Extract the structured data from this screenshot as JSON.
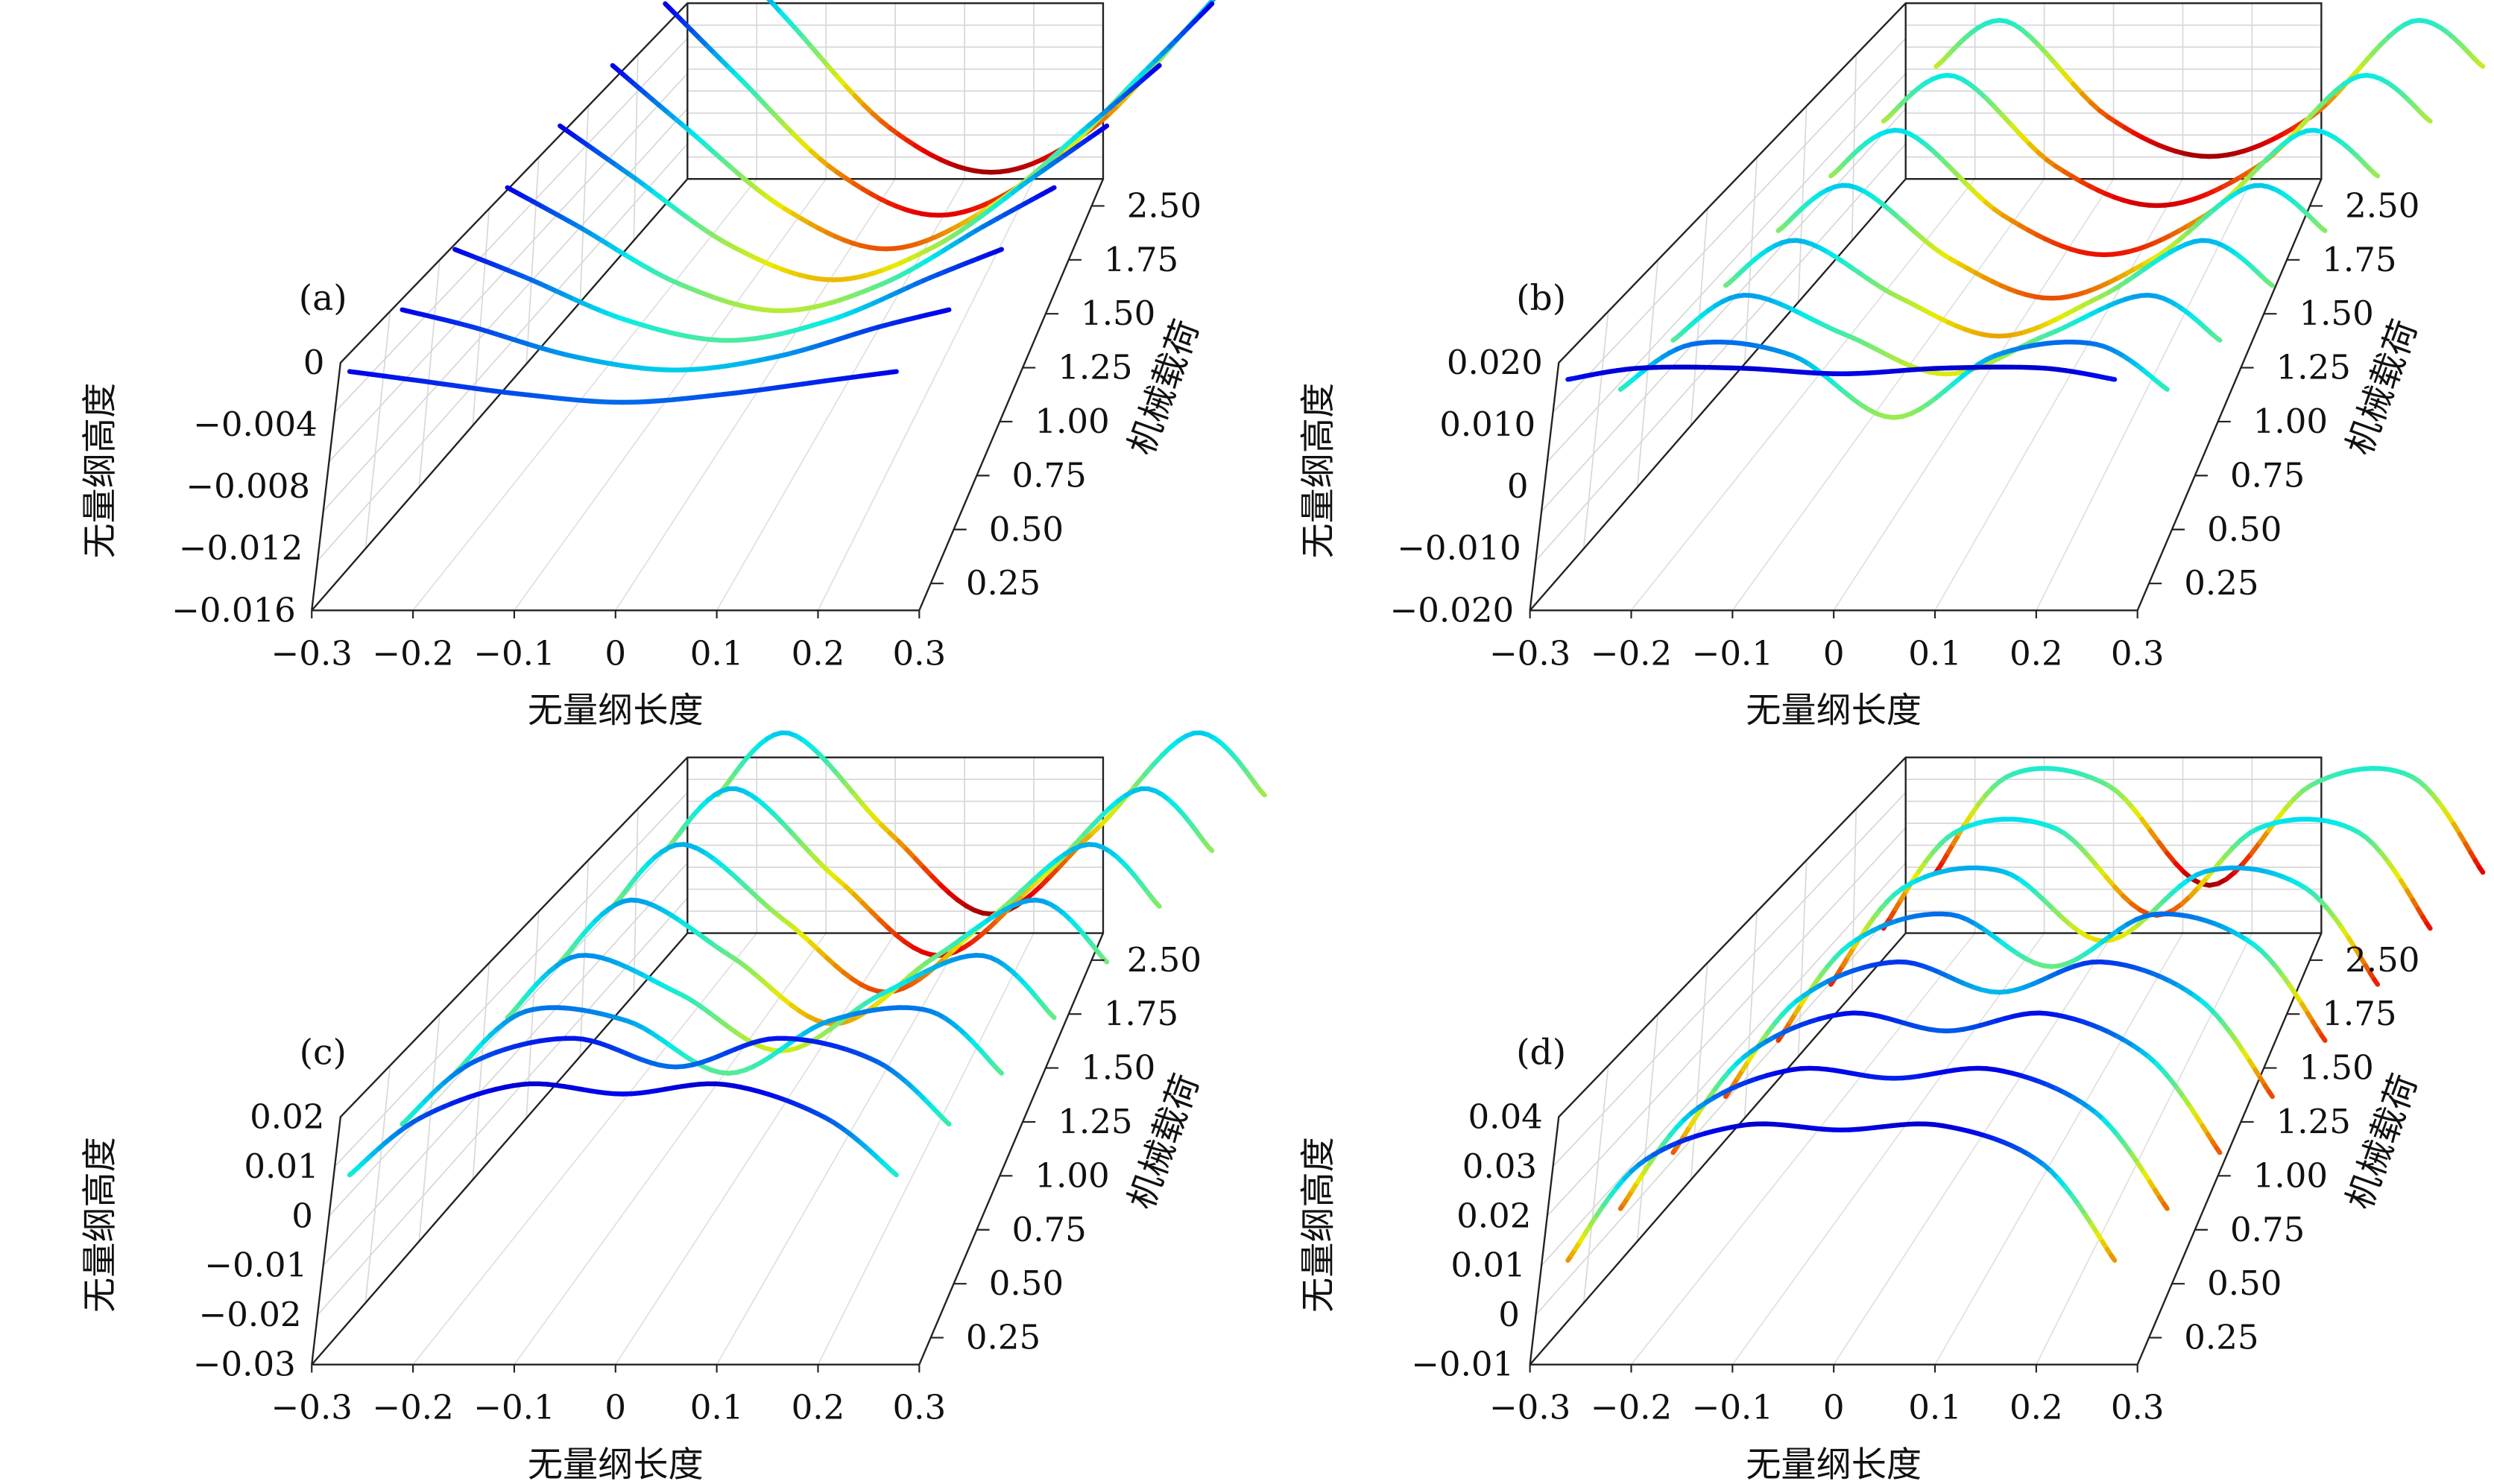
{
  "chart_data": [
    {
      "type": "line",
      "panel_label": "(a)",
      "xlabel": "无量纲长度",
      "ylabel": "无量纲高度",
      "zlabel": "机械载荷",
      "x_ticks": [
        "−0.3",
        "−0.2",
        "−0.1",
        "0",
        "0.1",
        "0.2",
        "0.3"
      ],
      "z_ticks": [
        "0",
        "−0.004",
        "−0.008",
        "−0.012",
        "−0.016"
      ],
      "depth_ticks": [
        "0.25",
        "0.50",
        "0.75",
        "1.00",
        "1.25",
        "1.50",
        "1.75",
        "2.50"
      ],
      "xlim": [
        -0.3,
        0.3
      ],
      "zlim": [
        -0.017,
        0.0015
      ],
      "depth_values": [
        0.25,
        0.5,
        0.75,
        1.0,
        1.25,
        1.5,
        1.75,
        2.5
      ],
      "series": [
        {
          "load": 0.25,
          "x": [
            -0.27,
            -0.2,
            -0.1,
            0,
            0.1,
            0.2,
            0.27
          ],
          "y": [
            0.0002,
            -0.0005,
            -0.0015,
            -0.0021,
            -0.0015,
            -0.0005,
            0.0002
          ]
        },
        {
          "load": 0.5,
          "x": [
            -0.27,
            -0.2,
            -0.1,
            0,
            0.1,
            0.2,
            0.27
          ],
          "y": [
            0.0003,
            -0.001,
            -0.0032,
            -0.0042,
            -0.0032,
            -0.001,
            0.0003
          ]
        },
        {
          "load": 0.75,
          "x": [
            -0.27,
            -0.2,
            -0.1,
            0,
            0.1,
            0.2,
            0.27
          ],
          "y": [
            0.0003,
            -0.0018,
            -0.005,
            -0.0065,
            -0.005,
            -0.0018,
            0.0003
          ]
        },
        {
          "load": 1.0,
          "x": [
            -0.27,
            -0.2,
            -0.1,
            0,
            0.1,
            0.2,
            0.27
          ],
          "y": [
            0.0004,
            -0.0025,
            -0.0068,
            -0.0088,
            -0.0068,
            -0.0025,
            0.0004
          ]
        },
        {
          "load": 1.25,
          "x": [
            -0.27,
            -0.2,
            -0.1,
            0,
            0.1,
            0.2,
            0.27
          ],
          "y": [
            0.0005,
            -0.0032,
            -0.0085,
            -0.011,
            -0.0085,
            -0.0032,
            0.0005
          ]
        },
        {
          "load": 1.5,
          "x": [
            -0.27,
            -0.2,
            -0.1,
            0,
            0.1,
            0.2,
            0.27
          ],
          "y": [
            0.0005,
            -0.004,
            -0.0102,
            -0.0132,
            -0.0102,
            -0.004,
            0.0005
          ]
        },
        {
          "load": 1.75,
          "x": [
            -0.27,
            -0.2,
            -0.1,
            0,
            0.1,
            0.2,
            0.27
          ],
          "y": [
            0.0006,
            -0.0047,
            -0.012,
            -0.0152,
            -0.012,
            -0.0047,
            0.0006
          ]
        },
        {
          "load": 2.5,
          "x": [
            -0.27,
            -0.2,
            -0.1,
            0,
            0.1,
            0.2,
            0.27
          ],
          "y": [
            0.0007,
            -0.0052,
            -0.0132,
            -0.0165,
            -0.0132,
            -0.0052,
            0.0007
          ]
        }
      ],
      "colormap": "jet"
    },
    {
      "type": "line",
      "panel_label": "(b)",
      "xlabel": "无量纲长度",
      "ylabel": "无量纲高度",
      "zlabel": "机械载荷",
      "x_ticks": [
        "−0.3",
        "−0.2",
        "−0.1",
        "0",
        "0.1",
        "0.2",
        "0.3"
      ],
      "z_ticks": [
        "0.020",
        "0.010",
        "0",
        "−0.010",
        "−0.020"
      ],
      "depth_ticks": [
        "0.25",
        "0.50",
        "0.75",
        "1.00",
        "1.25",
        "1.50",
        "1.75",
        "2.50"
      ],
      "xlim": [
        -0.3,
        0.3
      ],
      "zlim": [
        -0.022,
        0.022
      ],
      "depth_values": [
        0.25,
        0.5,
        0.75,
        1.0,
        1.25,
        1.5,
        1.75,
        2.5
      ],
      "series": [
        {
          "load": 0.25,
          "x": [
            -0.27,
            -0.2,
            -0.1,
            0,
            0.1,
            0.2,
            0.27
          ],
          "y": [
            0.0175,
            0.0195,
            0.0195,
            0.0185,
            0.0195,
            0.0195,
            0.0175
          ]
        },
        {
          "load": 0.5,
          "x": [
            -0.27,
            -0.2,
            -0.1,
            0,
            0.1,
            0.2,
            0.27
          ],
          "y": [
            0.005,
            0.013,
            0.011,
            0.0,
            0.011,
            0.013,
            0.005
          ]
        },
        {
          "load": 0.75,
          "x": [
            -0.27,
            -0.2,
            -0.1,
            0,
            0.1,
            0.2,
            0.27
          ],
          "y": [
            0.003,
            0.011,
            0.004,
            -0.003,
            0.004,
            0.011,
            0.003
          ]
        },
        {
          "load": 1.0,
          "x": [
            -0.27,
            -0.2,
            -0.1,
            0,
            0.1,
            0.2,
            0.27
          ],
          "y": [
            0.002,
            0.01,
            0.0,
            -0.007,
            0.0,
            0.01,
            0.002
          ]
        },
        {
          "load": 1.25,
          "x": [
            -0.27,
            -0.2,
            -0.1,
            0,
            0.1,
            0.2,
            0.27
          ],
          "y": [
            0.001,
            0.009,
            -0.004,
            -0.011,
            -0.004,
            0.009,
            0.001
          ]
        },
        {
          "load": 1.5,
          "x": [
            -0.27,
            -0.2,
            -0.1,
            0,
            0.1,
            0.2,
            0.27
          ],
          "y": [
            0.0,
            0.008,
            -0.007,
            -0.014,
            -0.007,
            0.008,
            0.0
          ]
        },
        {
          "load": 1.75,
          "x": [
            -0.27,
            -0.2,
            -0.1,
            0,
            0.1,
            0.2,
            0.27
          ],
          "y": [
            -0.001,
            0.007,
            -0.009,
            -0.016,
            -0.009,
            0.007,
            -0.001
          ]
        },
        {
          "load": 2.5,
          "x": [
            -0.27,
            -0.2,
            -0.1,
            0,
            0.1,
            0.2,
            0.27
          ],
          "y": [
            -0.002,
            0.006,
            -0.011,
            -0.018,
            -0.011,
            0.006,
            -0.002
          ]
        }
      ],
      "colormap": "jet"
    },
    {
      "type": "line",
      "panel_label": "(c)",
      "xlabel": "无量纲长度",
      "ylabel": "无量纲高度",
      "zlabel": "机械载荷",
      "x_ticks": [
        "−0.3",
        "−0.2",
        "−0.1",
        "0",
        "0.1",
        "0.2",
        "0.3"
      ],
      "z_ticks": [
        "0.02",
        "0.01",
        "0",
        "−0.01",
        "−0.02",
        "−0.03"
      ],
      "depth_ticks": [
        "0.25",
        "0.50",
        "0.75",
        "1.00",
        "1.25",
        "1.50",
        "1.75",
        "2.50"
      ],
      "xlim": [
        -0.3,
        0.3
      ],
      "zlim": [
        -0.03,
        0.022
      ],
      "depth_values": [
        0.25,
        0.5,
        0.75,
        1.0,
        1.25,
        1.5,
        1.75,
        2.5
      ],
      "series": [
        {
          "load": 0.25,
          "x": [
            -0.27,
            -0.2,
            -0.1,
            0,
            0.1,
            0.2,
            0.27
          ],
          "y": [
            0.008,
            0.02,
            0.027,
            0.025,
            0.027,
            0.02,
            0.008
          ]
        },
        {
          "load": 0.5,
          "x": [
            -0.27,
            -0.2,
            -0.1,
            0,
            0.1,
            0.2,
            0.27
          ],
          "y": [
            0.006,
            0.019,
            0.024,
            0.018,
            0.024,
            0.019,
            0.006
          ]
        },
        {
          "load": 0.75,
          "x": [
            -0.27,
            -0.2,
            -0.1,
            0,
            0.1,
            0.2,
            0.27
          ],
          "y": [
            0.004,
            0.017,
            0.015,
            0.004,
            0.015,
            0.017,
            0.004
          ]
        },
        {
          "load": 1.0,
          "x": [
            -0.27,
            -0.2,
            -0.1,
            0,
            0.1,
            0.2,
            0.27
          ],
          "y": [
            0.003,
            0.016,
            0.008,
            -0.004,
            0.008,
            0.016,
            0.003
          ]
        },
        {
          "load": 1.25,
          "x": [
            -0.27,
            -0.2,
            -0.1,
            0,
            0.1,
            0.2,
            0.27
          ],
          "y": [
            0.002,
            0.015,
            0.003,
            -0.011,
            0.003,
            0.015,
            0.002
          ]
        },
        {
          "load": 1.5,
          "x": [
            -0.27,
            -0.2,
            -0.1,
            0,
            0.1,
            0.2,
            0.27
          ],
          "y": [
            0.001,
            0.014,
            -0.002,
            -0.017,
            -0.002,
            0.014,
            0.001
          ]
        },
        {
          "load": 1.75,
          "x": [
            -0.27,
            -0.2,
            -0.1,
            0,
            0.1,
            0.2,
            0.27
          ],
          "y": [
            0.0,
            0.013,
            -0.006,
            -0.022,
            -0.006,
            0.013,
            0.0
          ]
        },
        {
          "load": 2.5,
          "x": [
            -0.27,
            -0.2,
            -0.1,
            0,
            0.1,
            0.2,
            0.27
          ],
          "y": [
            -0.001,
            0.012,
            -0.009,
            -0.026,
            -0.009,
            0.012,
            -0.001
          ]
        }
      ],
      "colormap": "jet"
    },
    {
      "type": "line",
      "panel_label": "(d)",
      "xlabel": "无量纲长度",
      "ylabel": "无量纲高度",
      "zlabel": "机械载荷",
      "x_ticks": [
        "−0.3",
        "−0.2",
        "−0.1",
        "0",
        "0.1",
        "0.2",
        "0.3"
      ],
      "z_ticks": [
        "0.04",
        "0.03",
        "0.02",
        "0.01",
        "0",
        "−0.01"
      ],
      "depth_ticks": [
        "0.25",
        "0.50",
        "0.75",
        "1.00",
        "1.25",
        "1.50",
        "1.75",
        "2.50"
      ],
      "xlim": [
        -0.3,
        0.3
      ],
      "zlim": [
        -0.012,
        0.045
      ],
      "depth_values": [
        0.25,
        0.5,
        0.75,
        1.0,
        1.25,
        1.5,
        1.75,
        2.5
      ],
      "series": [
        {
          "load": 0.25,
          "x": [
            -0.27,
            -0.2,
            -0.1,
            0,
            0.1,
            0.2,
            0.27
          ],
          "y": [
            0.01,
            0.032,
            0.041,
            0.04,
            0.041,
            0.032,
            0.01
          ]
        },
        {
          "load": 0.5,
          "x": [
            -0.27,
            -0.2,
            -0.1,
            0,
            0.1,
            0.2,
            0.27
          ],
          "y": [
            0.008,
            0.03,
            0.04,
            0.038,
            0.04,
            0.03,
            0.008
          ]
        },
        {
          "load": 0.75,
          "x": [
            -0.27,
            -0.2,
            -0.1,
            0,
            0.1,
            0.2,
            0.27
          ],
          "y": [
            0.007,
            0.029,
            0.039,
            0.035,
            0.039,
            0.029,
            0.007
          ]
        },
        {
          "load": 1.0,
          "x": [
            -0.27,
            -0.2,
            -0.1,
            0,
            0.1,
            0.2,
            0.27
          ],
          "y": [
            0.006,
            0.028,
            0.037,
            0.03,
            0.037,
            0.028,
            0.006
          ]
        },
        {
          "load": 1.25,
          "x": [
            -0.27,
            -0.2,
            -0.1,
            0,
            0.1,
            0.2,
            0.27
          ],
          "y": [
            0.005,
            0.027,
            0.034,
            0.022,
            0.034,
            0.027,
            0.005
          ]
        },
        {
          "load": 1.5,
          "x": [
            -0.27,
            -0.2,
            -0.1,
            0,
            0.1,
            0.2,
            0.27
          ],
          "y": [
            0.004,
            0.026,
            0.03,
            0.014,
            0.03,
            0.026,
            0.004
          ]
        },
        {
          "load": 1.75,
          "x": [
            -0.27,
            -0.2,
            -0.1,
            0,
            0.1,
            0.2,
            0.27
          ],
          "y": [
            0.003,
            0.025,
            0.026,
            0.006,
            0.026,
            0.025,
            0.003
          ]
        },
        {
          "load": 2.5,
          "x": [
            -0.27,
            -0.2,
            -0.1,
            0,
            0.1,
            0.2,
            0.27
          ],
          "y": [
            0.002,
            0.024,
            0.022,
            -0.001,
            0.022,
            0.024,
            0.002
          ]
        }
      ],
      "colormap": "jet"
    }
  ]
}
